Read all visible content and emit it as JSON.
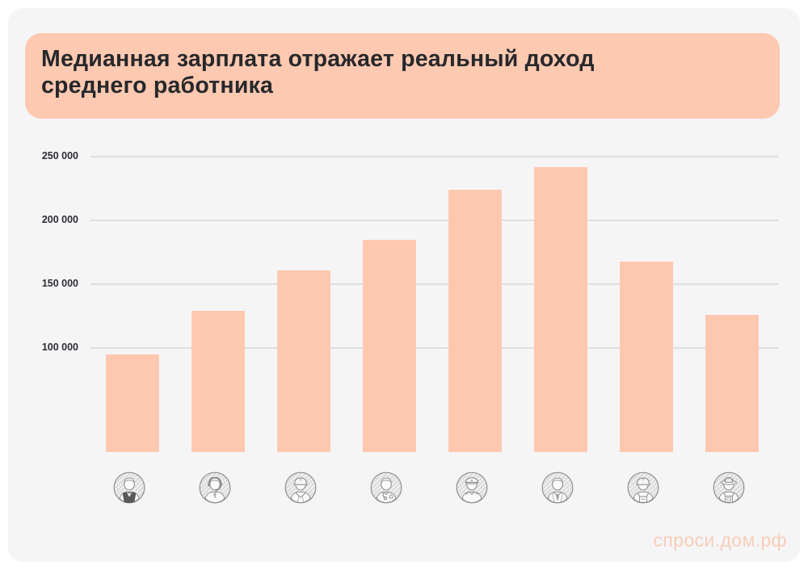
{
  "page": {
    "background": "#ffffff",
    "card_background": "#f5f5f6"
  },
  "title": {
    "lines": [
      "Медианная зарплата отражает реальный доход",
      "среднего работника"
    ],
    "background": "#fec9b1",
    "text_color": "#26282b"
  },
  "watermark": {
    "text": "спроси.дом.рф",
    "color": "#f8cdb8"
  },
  "chart_data": {
    "type": "bar",
    "title": "Медианная зарплата отражает реальный доход среднего работника",
    "xlabel": "",
    "ylabel": "",
    "categories": [
      "waiter",
      "call-center-operator",
      "engineer-hardhat",
      "doctor",
      "pilot",
      "businessman",
      "builder",
      "farmer"
    ],
    "icons": [
      "waiter-icon",
      "call-center-operator-icon",
      "engineer-hardhat-icon",
      "doctor-icon",
      "pilot-icon",
      "businessman-icon",
      "builder-icon",
      "farmer-icon"
    ],
    "values": [
      95000,
      129000,
      161000,
      185000,
      224000,
      242000,
      168000,
      126000
    ],
    "yticks": [
      {
        "label": "250 000",
        "value": 250000
      },
      {
        "label": "200 000",
        "value": 200000
      },
      {
        "label": "150 000",
        "value": 150000
      },
      {
        "label": "100 000",
        "value": 100000
      }
    ],
    "ylim_visible": [
      18500,
      260000
    ],
    "grid": "horizontal-only",
    "legend": "none",
    "bar_color": "#fec8b0",
    "gridline_color": "#dfdfe0",
    "tick_color": "#2b2d33"
  }
}
